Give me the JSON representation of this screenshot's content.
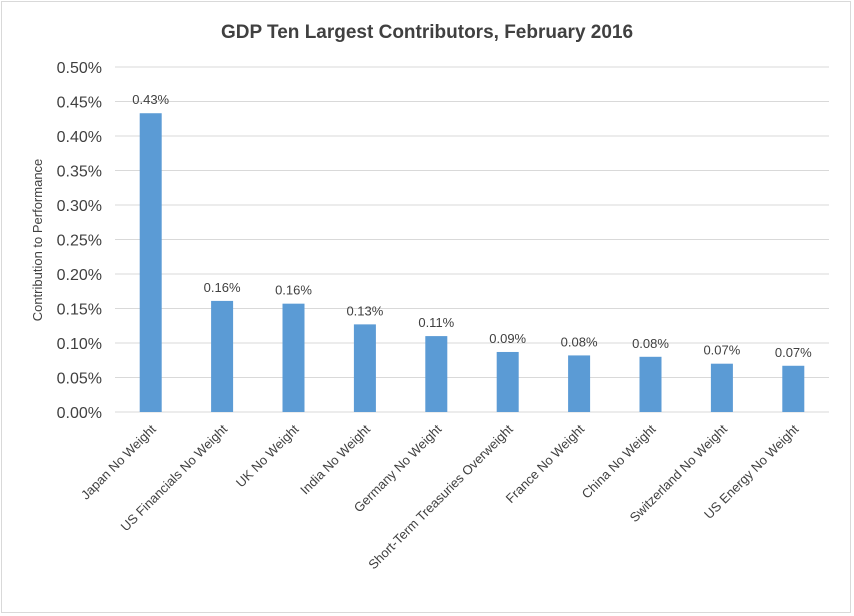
{
  "chart_data": {
    "type": "bar",
    "title": "GDP Ten Largest Contributors, February 2016",
    "xlabel": "",
    "ylabel": "Contribution to Performance",
    "categories": [
      "Japan No Weight",
      "US Financials No Weight",
      "UK No Weight",
      "India No Weight",
      "Germany No Weight",
      "Short-Term Treasuries Overweight",
      "France No Weight",
      "China No Weight",
      "Switzerland No Weight",
      "US Energy No Weight"
    ],
    "values": [
      0.433,
      0.161,
      0.157,
      0.127,
      0.11,
      0.087,
      0.082,
      0.08,
      0.07,
      0.067
    ],
    "data_labels": [
      "0.43%",
      "0.16%",
      "0.16%",
      "0.13%",
      "0.11%",
      "0.09%",
      "0.08%",
      "0.08%",
      "0.07%",
      "0.07%"
    ],
    "ylim": [
      0,
      0.5
    ],
    "yticks": [
      0,
      0.05,
      0.1,
      0.15,
      0.2,
      0.25,
      0.3,
      0.35,
      0.4,
      0.45,
      0.5
    ],
    "ytick_labels": [
      "0.00%",
      "0.05%",
      "0.10%",
      "0.15%",
      "0.20%",
      "0.25%",
      "0.30%",
      "0.35%",
      "0.40%",
      "0.45%",
      "0.50%"
    ],
    "grid": true,
    "legend": "none",
    "colors": {
      "bar": "#5b9bd5",
      "grid": "#d9d9d9",
      "text": "#404040"
    }
  }
}
